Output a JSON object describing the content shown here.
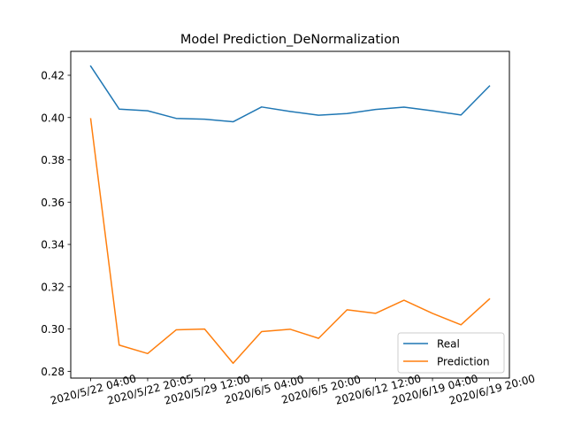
{
  "chart_data": {
    "type": "line",
    "title": "Model Prediction_DeNormalization",
    "xlabel": "",
    "ylabel": "",
    "x_tick_labels": [
      "2020/5/22 04:00",
      "2020/5/22 20:05",
      "2020/5/29 12:00",
      "2020/6/5 04:00",
      "2020/6/5 20:00",
      "2020/6/12 12:00",
      "2020/6/19 04:00",
      "2020/6/19 20:00"
    ],
    "x_tick_positions": [
      0,
      2,
      4,
      6,
      8,
      10,
      12,
      14
    ],
    "x": [
      0,
      1,
      2,
      3,
      4,
      5,
      6,
      7,
      8,
      9,
      10,
      11,
      12,
      13,
      14
    ],
    "series": [
      {
        "name": "Real",
        "color": "#1f77b4",
        "values": [
          0.4243,
          0.404,
          0.4032,
          0.3996,
          0.3992,
          0.398,
          0.405,
          0.4029,
          0.4011,
          0.4019,
          0.4038,
          0.4049,
          0.4032,
          0.4012,
          0.4149
        ]
      },
      {
        "name": "Prediction",
        "color": "#ff7f0e",
        "values": [
          0.3994,
          0.2924,
          0.2884,
          0.2996,
          0.3,
          0.2838,
          0.2988,
          0.2999,
          0.2956,
          0.3091,
          0.3074,
          0.3136,
          0.3074,
          0.302,
          0.3142
        ]
      }
    ],
    "y_ticks": [
      0.28,
      0.3,
      0.32,
      0.34,
      0.36,
      0.38,
      0.4,
      0.42
    ],
    "y_tick_labels": [
      "0.28",
      "0.30",
      "0.32",
      "0.34",
      "0.36",
      "0.38",
      "0.40",
      "0.42"
    ],
    "xlim": [
      -0.7,
      14.7
    ],
    "ylim": [
      0.2768,
      0.4313
    ],
    "grid": false,
    "legend_position": "lower right"
  }
}
